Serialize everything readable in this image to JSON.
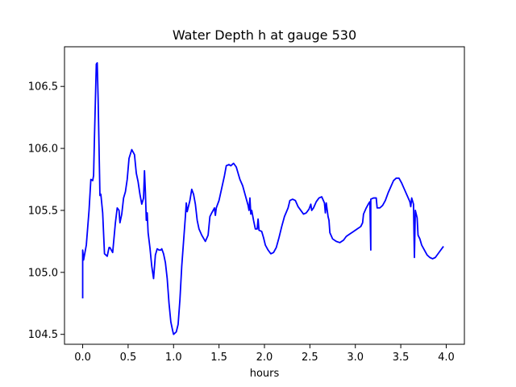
{
  "chart_data": {
    "type": "line",
    "title": "Water Depth h at gauge 530",
    "xlabel": "hours",
    "ylabel": "",
    "xlim": [
      -0.2,
      4.2
    ],
    "ylim": [
      104.42,
      106.82
    ],
    "xticks": [
      0.0,
      0.5,
      1.0,
      1.5,
      2.0,
      2.5,
      3.0,
      3.5,
      4.0
    ],
    "xtick_labels": [
      "0.0",
      "0.5",
      "1.0",
      "1.5",
      "2.0",
      "2.5",
      "3.0",
      "3.5",
      "4.0"
    ],
    "yticks": [
      104.5,
      105.0,
      105.5,
      106.0,
      106.5
    ],
    "ytick_labels": [
      "104.5",
      "105.0",
      "105.5",
      "106.0",
      "106.5"
    ],
    "grid": false,
    "series": [
      {
        "color": "#0000ff",
        "points": [
          [
            0.0,
            104.79
          ],
          [
            0.0,
            105.18
          ],
          [
            0.01,
            105.1
          ],
          [
            0.04,
            105.22
          ],
          [
            0.07,
            105.5
          ],
          [
            0.09,
            105.75
          ],
          [
            0.11,
            105.74
          ],
          [
            0.12,
            105.78
          ],
          [
            0.13,
            106.1
          ],
          [
            0.15,
            106.68
          ],
          [
            0.16,
            106.69
          ],
          [
            0.17,
            106.4
          ],
          [
            0.19,
            105.62
          ],
          [
            0.2,
            105.63
          ],
          [
            0.22,
            105.48
          ],
          [
            0.24,
            105.15
          ],
          [
            0.27,
            105.13
          ],
          [
            0.29,
            105.2
          ],
          [
            0.3,
            105.2
          ],
          [
            0.33,
            105.16
          ],
          [
            0.36,
            105.4
          ],
          [
            0.38,
            105.52
          ],
          [
            0.4,
            105.5
          ],
          [
            0.41,
            105.4
          ],
          [
            0.43,
            105.47
          ],
          [
            0.45,
            105.6
          ],
          [
            0.47,
            105.65
          ],
          [
            0.49,
            105.75
          ],
          [
            0.51,
            105.92
          ],
          [
            0.54,
            105.99
          ],
          [
            0.57,
            105.95
          ],
          [
            0.59,
            105.8
          ],
          [
            0.61,
            105.73
          ],
          [
            0.63,
            105.63
          ],
          [
            0.65,
            105.55
          ],
          [
            0.67,
            105.6
          ],
          [
            0.68,
            105.82
          ],
          [
            0.69,
            105.65
          ],
          [
            0.7,
            105.42
          ],
          [
            0.71,
            105.48
          ],
          [
            0.72,
            105.32
          ],
          [
            0.74,
            105.2
          ],
          [
            0.76,
            105.05
          ],
          [
            0.78,
            104.95
          ],
          [
            0.8,
            105.14
          ],
          [
            0.82,
            105.19
          ],
          [
            0.84,
            105.18
          ],
          [
            0.86,
            105.18
          ],
          [
            0.87,
            105.19
          ],
          [
            0.89,
            105.15
          ],
          [
            0.91,
            105.08
          ],
          [
            0.93,
            104.95
          ],
          [
            0.95,
            104.75
          ],
          [
            0.97,
            104.6
          ],
          [
            0.99,
            104.53
          ],
          [
            1.0,
            104.5
          ],
          [
            1.03,
            104.52
          ],
          [
            1.05,
            104.58
          ],
          [
            1.07,
            104.78
          ],
          [
            1.09,
            105.05
          ],
          [
            1.11,
            105.25
          ],
          [
            1.13,
            105.45
          ],
          [
            1.14,
            105.56
          ],
          [
            1.15,
            105.49
          ],
          [
            1.16,
            105.52
          ],
          [
            1.18,
            105.58
          ],
          [
            1.2,
            105.67
          ],
          [
            1.22,
            105.63
          ],
          [
            1.24,
            105.55
          ],
          [
            1.26,
            105.42
          ],
          [
            1.28,
            105.35
          ],
          [
            1.31,
            105.3
          ],
          [
            1.35,
            105.25
          ],
          [
            1.38,
            105.3
          ],
          [
            1.4,
            105.45
          ],
          [
            1.42,
            105.48
          ],
          [
            1.45,
            105.52
          ],
          [
            1.46,
            105.46
          ],
          [
            1.47,
            105.52
          ],
          [
            1.5,
            105.58
          ],
          [
            1.53,
            105.68
          ],
          [
            1.56,
            105.78
          ],
          [
            1.58,
            105.86
          ],
          [
            1.61,
            105.87
          ],
          [
            1.63,
            105.86
          ],
          [
            1.66,
            105.88
          ],
          [
            1.69,
            105.85
          ],
          [
            1.71,
            105.8
          ],
          [
            1.73,
            105.75
          ],
          [
            1.76,
            105.7
          ],
          [
            1.79,
            105.62
          ],
          [
            1.82,
            105.54
          ],
          [
            1.83,
            105.5
          ],
          [
            1.84,
            105.6
          ],
          [
            1.85,
            105.47
          ],
          [
            1.86,
            105.5
          ],
          [
            1.88,
            105.42
          ],
          [
            1.9,
            105.35
          ],
          [
            1.92,
            105.35
          ],
          [
            1.93,
            105.43
          ],
          [
            1.94,
            105.34
          ],
          [
            1.97,
            105.33
          ],
          [
            1.99,
            105.28
          ],
          [
            2.01,
            105.22
          ],
          [
            2.04,
            105.18
          ],
          [
            2.07,
            105.15
          ],
          [
            2.1,
            105.16
          ],
          [
            2.13,
            105.2
          ],
          [
            2.16,
            105.28
          ],
          [
            2.19,
            105.37
          ],
          [
            2.22,
            105.45
          ],
          [
            2.26,
            105.52
          ],
          [
            2.28,
            105.58
          ],
          [
            2.31,
            105.59
          ],
          [
            2.34,
            105.58
          ],
          [
            2.37,
            105.53
          ],
          [
            2.4,
            105.5
          ],
          [
            2.43,
            105.47
          ],
          [
            2.46,
            105.48
          ],
          [
            2.49,
            105.51
          ],
          [
            2.51,
            105.55
          ],
          [
            2.52,
            105.5
          ],
          [
            2.54,
            105.52
          ],
          [
            2.57,
            105.57
          ],
          [
            2.6,
            105.6
          ],
          [
            2.63,
            105.61
          ],
          [
            2.66,
            105.56
          ],
          [
            2.67,
            105.48
          ],
          [
            2.68,
            105.56
          ],
          [
            2.7,
            105.45
          ],
          [
            2.71,
            105.42
          ],
          [
            2.72,
            105.32
          ],
          [
            2.75,
            105.27
          ],
          [
            2.79,
            105.25
          ],
          [
            2.83,
            105.24
          ],
          [
            2.87,
            105.26
          ],
          [
            2.9,
            105.29
          ],
          [
            2.94,
            105.31
          ],
          [
            2.98,
            105.33
          ],
          [
            3.02,
            105.35
          ],
          [
            3.06,
            105.37
          ],
          [
            3.08,
            105.4
          ],
          [
            3.09,
            105.47
          ],
          [
            3.12,
            105.52
          ],
          [
            3.15,
            105.56
          ],
          [
            3.16,
            105.57
          ],
          [
            3.17,
            105.18
          ],
          [
            3.17,
            105.59
          ],
          [
            3.2,
            105.6
          ],
          [
            3.23,
            105.6
          ],
          [
            3.24,
            105.52
          ],
          [
            3.27,
            105.52
          ],
          [
            3.3,
            105.54
          ],
          [
            3.33,
            105.58
          ],
          [
            3.36,
            105.64
          ],
          [
            3.39,
            105.69
          ],
          [
            3.42,
            105.74
          ],
          [
            3.45,
            105.76
          ],
          [
            3.48,
            105.76
          ],
          [
            3.51,
            105.72
          ],
          [
            3.54,
            105.67
          ],
          [
            3.57,
            105.62
          ],
          [
            3.6,
            105.57
          ],
          [
            3.61,
            105.53
          ],
          [
            3.62,
            105.6
          ],
          [
            3.64,
            105.55
          ],
          [
            3.65,
            105.12
          ],
          [
            3.66,
            105.5
          ],
          [
            3.68,
            105.44
          ],
          [
            3.69,
            105.3
          ],
          [
            3.71,
            105.27
          ],
          [
            3.73,
            105.22
          ],
          [
            3.76,
            105.18
          ],
          [
            3.79,
            105.14
          ],
          [
            3.82,
            105.12
          ],
          [
            3.85,
            105.11
          ],
          [
            3.88,
            105.12
          ],
          [
            3.91,
            105.15
          ],
          [
            3.94,
            105.18
          ],
          [
            3.97,
            105.21
          ]
        ]
      }
    ]
  }
}
